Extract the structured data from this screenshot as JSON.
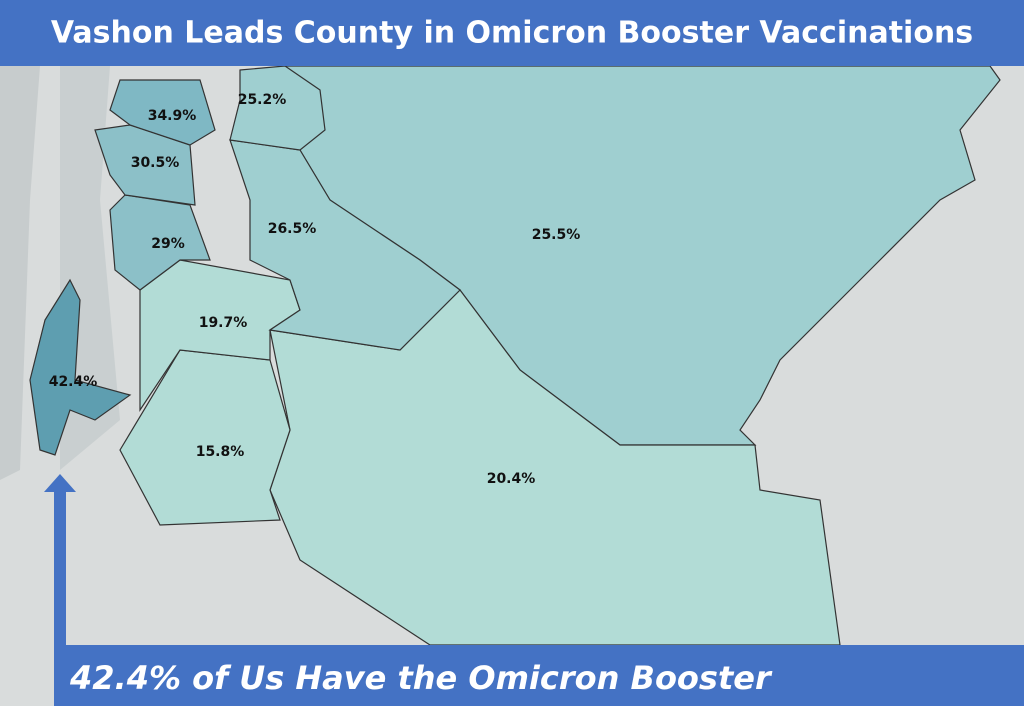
{
  "header": {
    "title": "Vashon Leads County in Omicron Booster Vaccinations"
  },
  "regions": [
    {
      "label": "34.9%"
    },
    {
      "label": "25.2%"
    },
    {
      "label": "30.5%"
    },
    {
      "label": "29%"
    },
    {
      "label": "26.5%"
    },
    {
      "label": "25.5%"
    },
    {
      "label": "19.7%"
    },
    {
      "label": "42.4%"
    },
    {
      "label": "15.8%"
    },
    {
      "label": "20.4%"
    }
  ],
  "footer": {
    "caption": "42.4% of Us Have the Omicron Booster"
  }
}
